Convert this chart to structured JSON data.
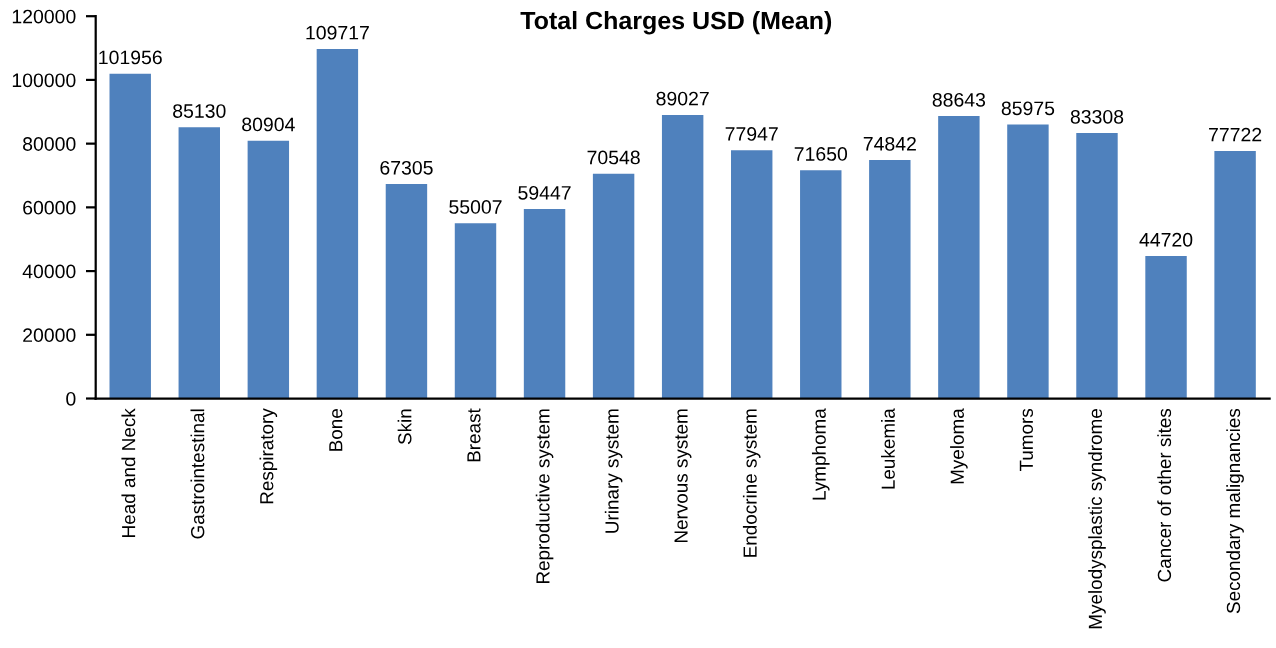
{
  "chart_data": {
    "type": "bar",
    "title": "Total Charges USD (Mean)",
    "categories": [
      "Head and Neck",
      "Gastrointestinal",
      "Respiratory",
      "Bone",
      "Skin",
      "Breast",
      "Reproductive system",
      "Urinary system",
      "Nervous system",
      "Endocrine system",
      "Lymphoma",
      "Leukemia",
      "Myeloma",
      "Tumors",
      "Myelodysplastic syndrome",
      "Cancer of other sites",
      "Secondary malignancies"
    ],
    "values": [
      101956,
      85130,
      80904,
      109717,
      67305,
      55007,
      59447,
      70548,
      89027,
      77947,
      71650,
      74842,
      88643,
      85975,
      83308,
      44720,
      77722
    ],
    "color": "#4f81bd",
    "ylim": [
      0,
      120000
    ],
    "yticks": [
      0,
      20000,
      40000,
      60000,
      80000,
      100000,
      120000
    ],
    "grid": false,
    "data_labels": true
  }
}
